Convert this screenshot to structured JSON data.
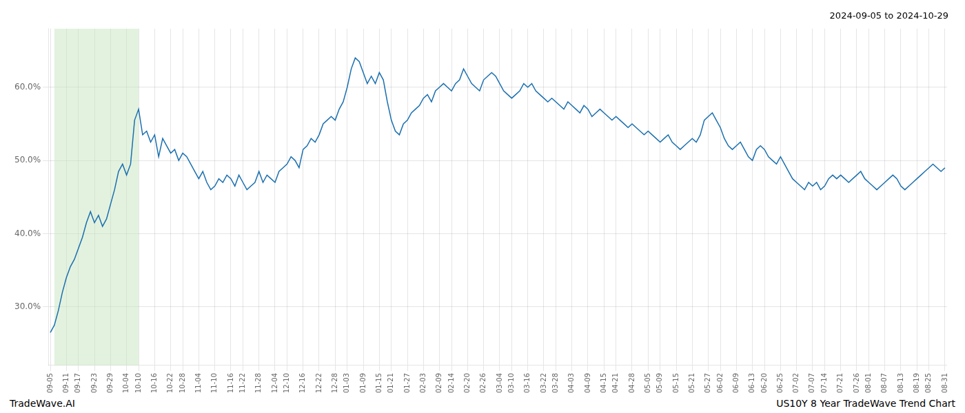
{
  "chart_data": {
    "type": "line",
    "title": "2024-09-05 to 2024-10-29",
    "annotations": [
      "TradeWave.AI",
      "US10Y 8 Year TradeWave Trend Chart"
    ],
    "color": "#1a6faf",
    "grid": true,
    "shaded_x": [
      1,
      22
    ],
    "shaded_color": "#c8e6c0",
    "ylim": [
      22.0,
      68.0
    ],
    "yticks": [
      {
        "value": 30.0,
        "label": "30.0%"
      },
      {
        "value": 40.0,
        "label": "40.0%"
      },
      {
        "value": 50.0,
        "label": "50.0%"
      },
      {
        "value": 60.0,
        "label": "60.0%"
      }
    ],
    "categories": [
      "09-05",
      null,
      null,
      null,
      "09-11",
      null,
      null,
      "09-17",
      null,
      null,
      null,
      "09-23",
      null,
      null,
      null,
      "09-29",
      null,
      null,
      null,
      "10-04",
      null,
      null,
      "10-10",
      null,
      null,
      null,
      "10-16",
      null,
      null,
      null,
      "10-22",
      null,
      null,
      "10-28",
      null,
      null,
      null,
      "11-04",
      null,
      null,
      null,
      "11-10",
      null,
      null,
      null,
      "11-16",
      null,
      null,
      "11-22",
      null,
      null,
      null,
      "11-28",
      null,
      null,
      null,
      "12-04",
      null,
      null,
      "12-10",
      null,
      null,
      null,
      "12-16",
      null,
      null,
      null,
      "12-22",
      null,
      null,
      null,
      "12-28",
      null,
      null,
      "01-03",
      null,
      null,
      null,
      "01-09",
      null,
      null,
      null,
      "01-15",
      null,
      null,
      "01-21",
      null,
      null,
      null,
      "01-27",
      null,
      null,
      null,
      "02-03",
      null,
      null,
      null,
      "02-09",
      null,
      null,
      "02-14",
      null,
      null,
      null,
      "02-20",
      null,
      null,
      null,
      "02-26",
      null,
      null,
      null,
      "03-04",
      null,
      null,
      "03-10",
      null,
      null,
      null,
      "03-16",
      null,
      null,
      null,
      "03-22",
      null,
      null,
      "03-28",
      null,
      null,
      null,
      "04-03",
      null,
      null,
      null,
      "04-09",
      null,
      null,
      null,
      "04-15",
      null,
      null,
      "04-21",
      null,
      null,
      null,
      "04-28",
      null,
      null,
      null,
      "05-05",
      null,
      null,
      "05-09",
      null,
      null,
      null,
      "05-15",
      null,
      null,
      null,
      "05-21",
      null,
      null,
      null,
      "05-27",
      null,
      null,
      "06-02",
      null,
      null,
      null,
      "06-09",
      null,
      null,
      null,
      "06-13",
      null,
      null,
      "06-20",
      null,
      null,
      null,
      "06-25",
      null,
      null,
      null,
      "07-02",
      null,
      null,
      null,
      "07-07",
      null,
      null,
      "07-14",
      null,
      null,
      null,
      "07-21",
      null,
      null,
      null,
      "07-26",
      null,
      null,
      "08-01",
      null,
      null,
      null,
      "08-07",
      null,
      null,
      null,
      "08-13",
      null,
      null,
      null,
      "08-19",
      null,
      null,
      "08-25",
      null,
      null,
      null,
      "08-31"
    ],
    "values": [
      26.5,
      27.5,
      29.5,
      32.0,
      34.0,
      35.5,
      36.5,
      38.0,
      39.5,
      41.5,
      43.0,
      41.5,
      42.5,
      41.0,
      42.0,
      44.0,
      46.0,
      48.5,
      49.5,
      48.0,
      49.5,
      55.5,
      57.0,
      53.5,
      54.0,
      52.5,
      53.5,
      50.5,
      53.0,
      52.0,
      51.0,
      51.5,
      50.0,
      51.0,
      50.5,
      49.5,
      48.5,
      47.5,
      48.5,
      47.0,
      46.0,
      46.5,
      47.5,
      47.0,
      48.0,
      47.5,
      46.5,
      48.0,
      47.0,
      46.0,
      46.5,
      47.0,
      48.5,
      47.0,
      48.0,
      47.5,
      47.0,
      48.5,
      49.0,
      49.5,
      50.5,
      50.0,
      49.0,
      51.5,
      52.0,
      53.0,
      52.5,
      53.5,
      55.0,
      55.5,
      56.0,
      55.5,
      57.0,
      58.0,
      60.0,
      62.5,
      64.0,
      63.5,
      62.0,
      60.5,
      61.5,
      60.5,
      62.0,
      61.0,
      58.0,
      55.5,
      54.0,
      53.5,
      55.0,
      55.5,
      56.5,
      57.0,
      57.5,
      58.5,
      59.0,
      58.0,
      59.5,
      60.0,
      60.5,
      60.0,
      59.5,
      60.5,
      61.0,
      62.5,
      61.5,
      60.5,
      60.0,
      59.5,
      61.0,
      61.5,
      62.0,
      61.5,
      60.5,
      59.5,
      59.0,
      58.5,
      59.0,
      59.5,
      60.5,
      60.0,
      60.5,
      59.5,
      59.0,
      58.5,
      58.0,
      58.5,
      58.0,
      57.5,
      57.0,
      58.0,
      57.5,
      57.0,
      56.5,
      57.5,
      57.0,
      56.0,
      56.5,
      57.0,
      56.5,
      56.0,
      55.5,
      56.0,
      55.5,
      55.0,
      54.5,
      55.0,
      54.5,
      54.0,
      53.5,
      54.0,
      53.5,
      53.0,
      52.5,
      53.0,
      53.5,
      52.5,
      52.0,
      51.5,
      52.0,
      52.5,
      53.0,
      52.5,
      53.5,
      55.5,
      56.0,
      56.5,
      55.5,
      54.5,
      53.0,
      52.0,
      51.5,
      52.0,
      52.5,
      51.5,
      50.5,
      50.0,
      51.5,
      52.0,
      51.5,
      50.5,
      50.0,
      49.5,
      50.5,
      49.5,
      48.5,
      47.5,
      47.0,
      46.5,
      46.0,
      47.0,
      46.5,
      47.0,
      46.0,
      46.5,
      47.5,
      48.0,
      47.5,
      48.0,
      47.5,
      47.0,
      47.5,
      48.0,
      48.5,
      47.5,
      47.0,
      46.5,
      46.0,
      46.5,
      47.0,
      47.5,
      48.0,
      47.5,
      46.5,
      46.0,
      46.5,
      47.0,
      47.5,
      48.0,
      48.5,
      49.0,
      49.5,
      49.0,
      48.5,
      49.0
    ]
  }
}
